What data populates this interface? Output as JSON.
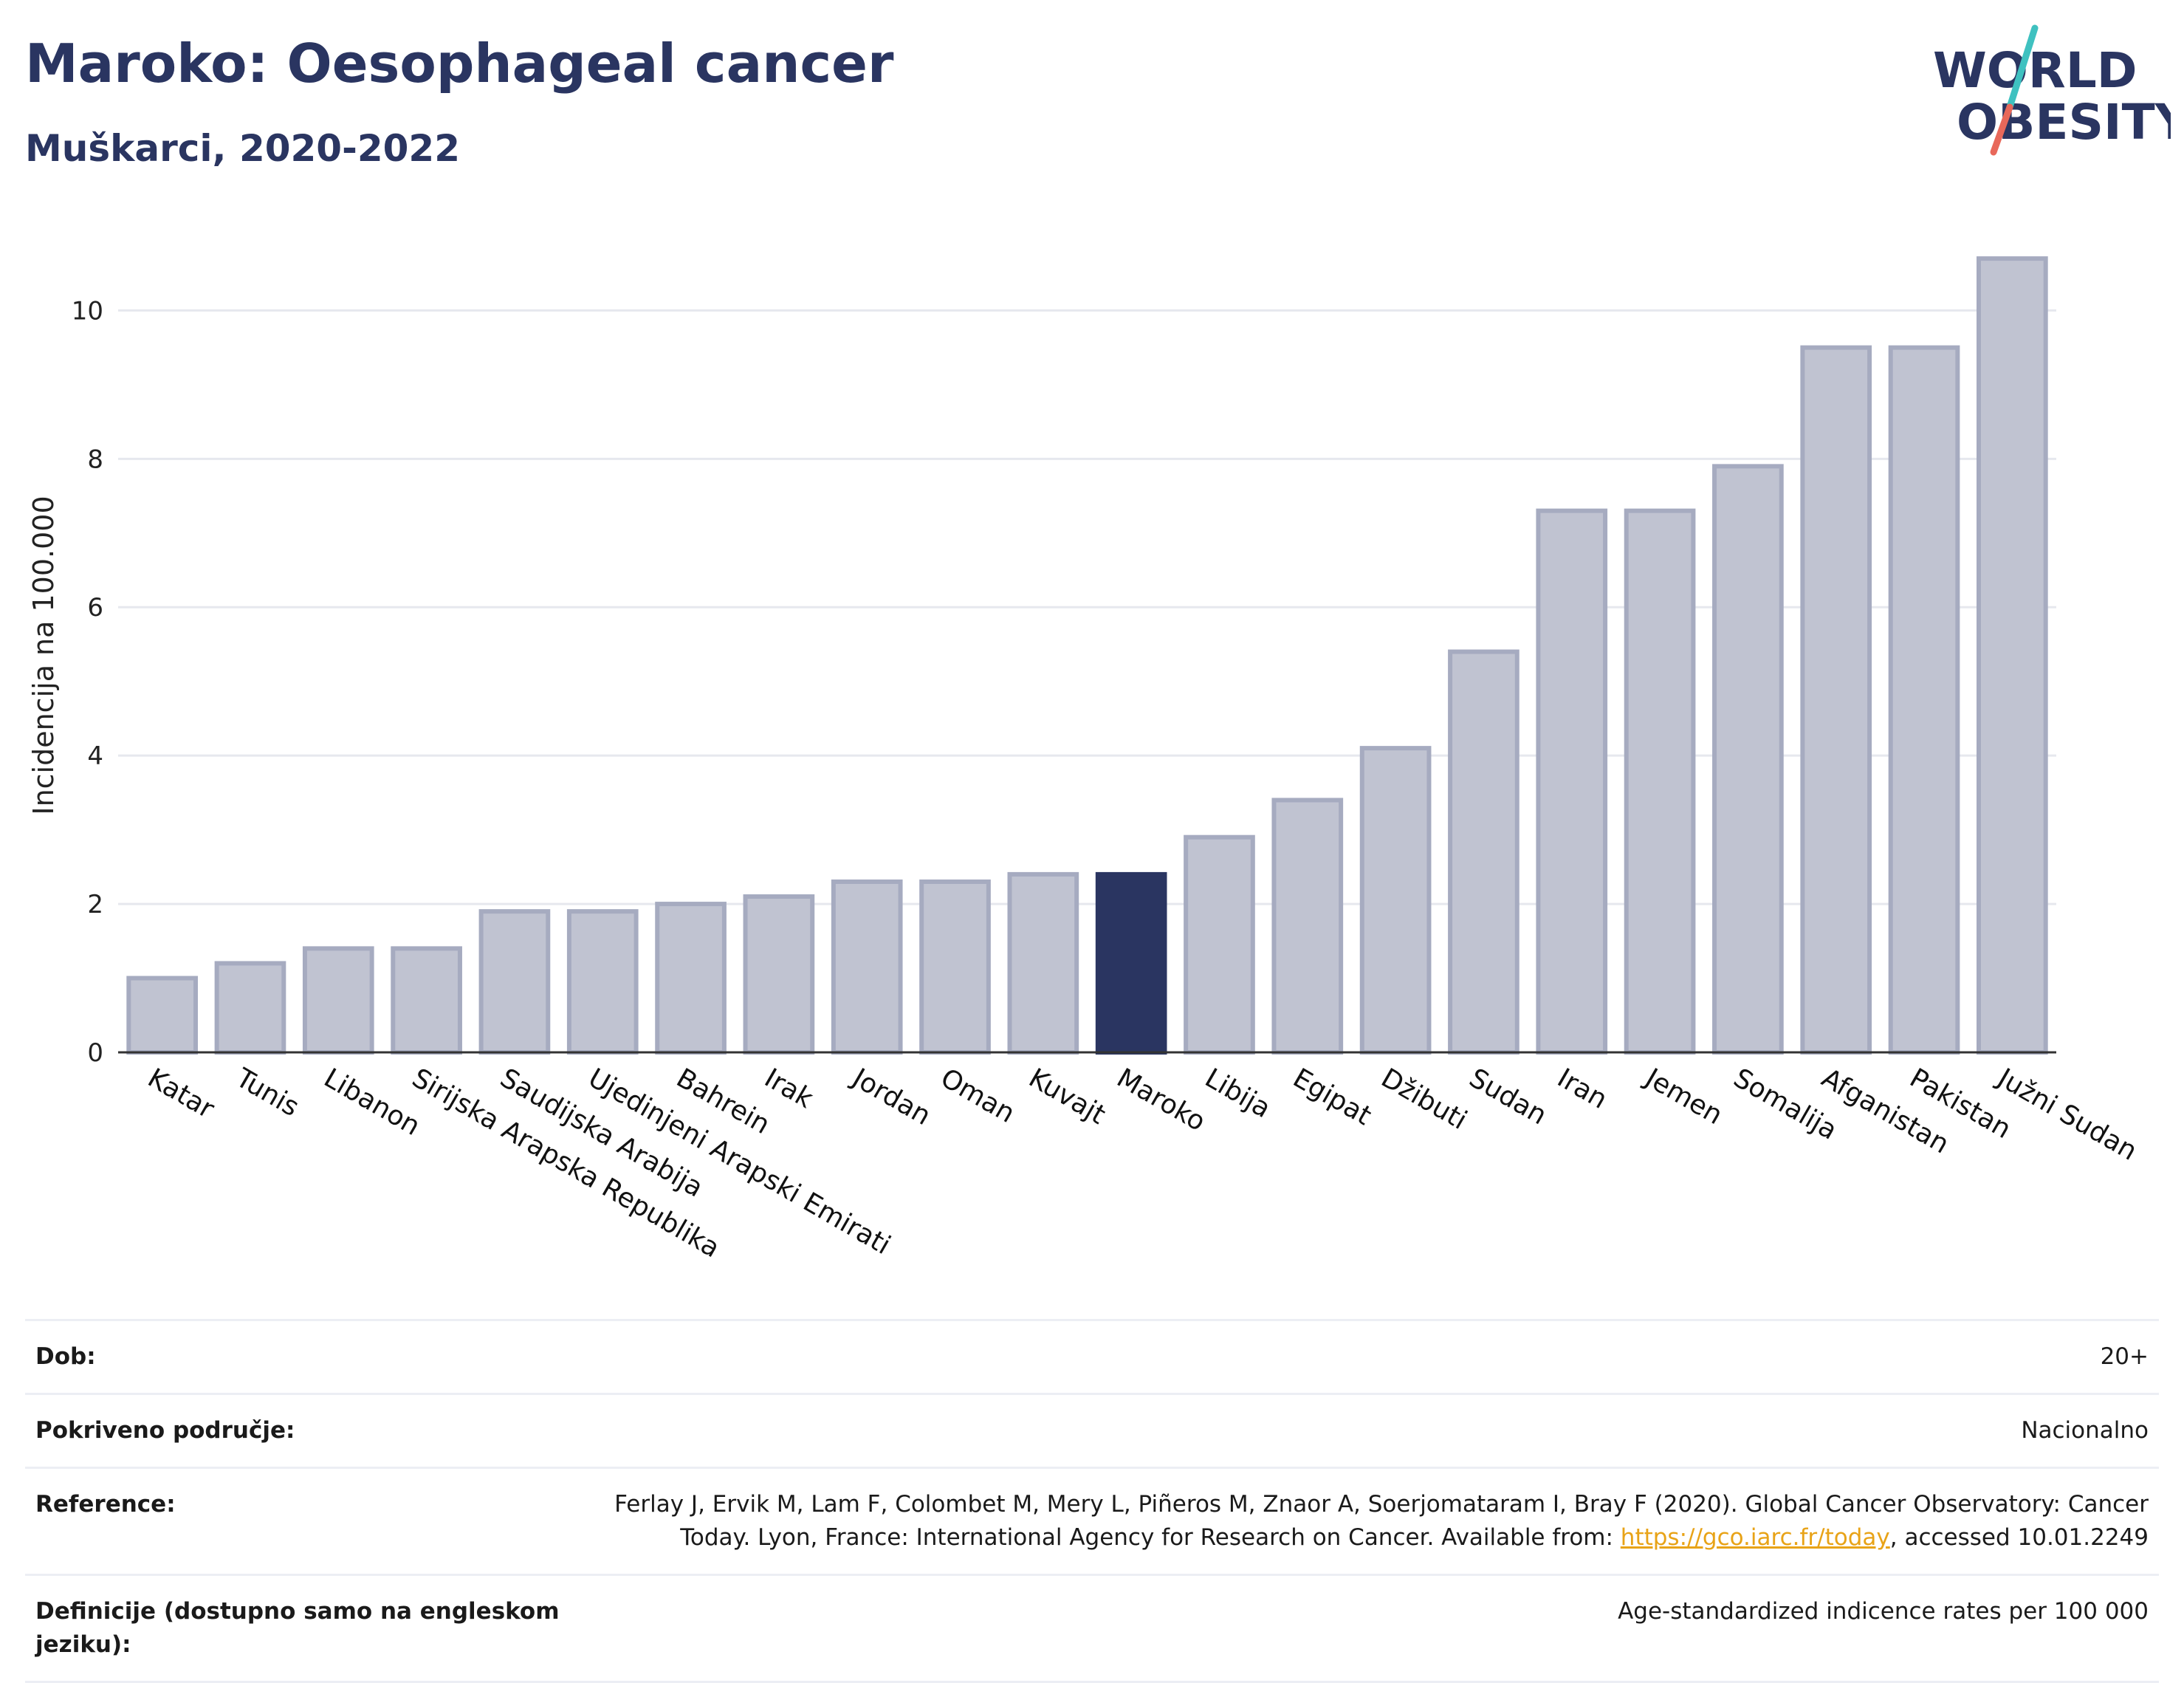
{
  "header": {
    "title": "Maroko: Oesophageal cancer",
    "subtitle": "Muškarci, 2020-2022"
  },
  "logo": {
    "line1": "WORLD",
    "line2": "OBESITY",
    "colors": {
      "text": "#2a3561",
      "slash_top": "#3fc1c0",
      "slash_bottom": "#e8685a"
    }
  },
  "colors": {
    "bar_default_fill": "#c0c3d1",
    "bar_default_stroke": "#a6abc0",
    "bar_highlight": "#2a3561",
    "grid": "#e6e8ee",
    "axis": "#333333"
  },
  "chart_data": {
    "type": "bar",
    "ylabel": "Incidencija na 100.000",
    "ylim": [
      0,
      10.9
    ],
    "yticks": [
      0,
      2,
      4,
      6,
      8,
      10
    ],
    "grid": true,
    "highlight": "Maroko",
    "categories": [
      "Katar",
      "Tunis",
      "Libanon",
      "Sirijska Arapska Republika",
      "Saudijska Arabija",
      "Ujedinjeni Arapski Emirati",
      "Bahrein",
      "Irak",
      "Jordan",
      "Oman",
      "Kuvajt",
      "Maroko",
      "Libija",
      "Egipat",
      "Džibuti",
      "Sudan",
      "Iran",
      "Jemen",
      "Somalija",
      "Afganistan",
      "Pakistan",
      "Južni Sudan"
    ],
    "values": [
      1.0,
      1.2,
      1.4,
      1.4,
      1.9,
      1.9,
      2.0,
      2.1,
      2.3,
      2.3,
      2.4,
      2.4,
      2.9,
      3.4,
      4.1,
      5.4,
      7.3,
      7.3,
      7.9,
      9.5,
      9.5,
      10.7
    ]
  },
  "meta": {
    "rows": [
      {
        "key": "Dob:",
        "value": "20+"
      },
      {
        "key": "Pokriveno područje:",
        "value": "Nacionalno"
      },
      {
        "key": "Reference:",
        "value_before": "Ferlay J, Ervik M, Lam F, Colombet M, Mery L, Piñeros M, Znaor A, Soerjomataram I, Bray F (2020). Global Cancer Observatory: Cancer Today. Lyon, France: International Agency for Research on Cancer. Available from: ",
        "link": "https://gco.iarc.fr/today",
        "value_after": ", accessed 10.01.2249"
      },
      {
        "key": "Definicije (dostupno samo na engleskom jeziku):",
        "value": "Age-standardized indicence rates per 100 000"
      }
    ]
  }
}
